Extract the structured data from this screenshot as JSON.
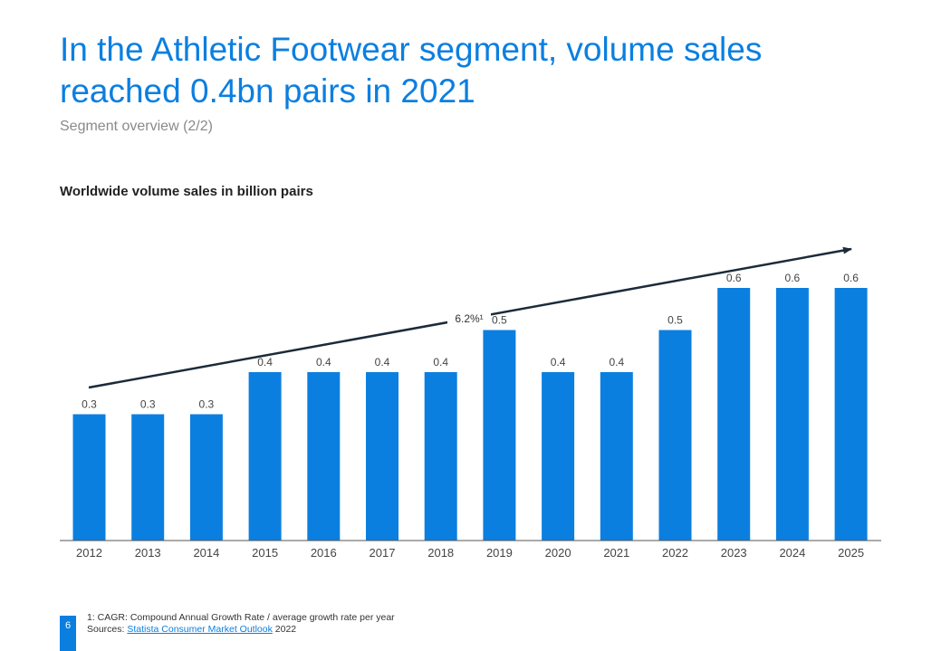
{
  "header": {
    "title": "In the Athletic Footwear segment, volume sales reached 0.4bn pairs in 2021",
    "subtitle": "Segment overview (2/2)"
  },
  "chart_data": {
    "type": "bar",
    "title": "Worldwide volume sales in billion pairs",
    "categories": [
      "2012",
      "2013",
      "2014",
      "2015",
      "2016",
      "2017",
      "2018",
      "2019",
      "2020",
      "2021",
      "2022",
      "2023",
      "2024",
      "2025"
    ],
    "values": [
      0.3,
      0.3,
      0.3,
      0.4,
      0.4,
      0.4,
      0.4,
      0.5,
      0.4,
      0.4,
      0.5,
      0.6,
      0.6,
      0.6
    ],
    "labels": [
      "0.3",
      "0.3",
      "0.3",
      "0.4",
      "0.4",
      "0.4",
      "0.4",
      "0.5",
      "0.4",
      "0.4",
      "0.5",
      "0.6",
      "0.6",
      "0.6"
    ],
    "ylim": [
      0,
      0.65
    ],
    "annotation": "6.2%¹",
    "bar_color": "#0b7fe0"
  },
  "footer": {
    "page": "6",
    "note": "1: CAGR: Compound Annual Growth Rate / average growth rate per year",
    "sources_prefix": "Sources: ",
    "sources_link": "Statista Consumer Market Outlook",
    "sources_suffix": " 2022"
  }
}
